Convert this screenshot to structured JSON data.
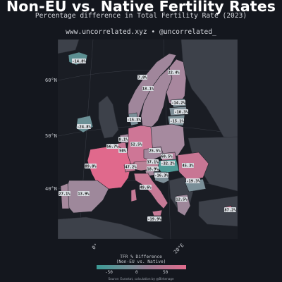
{
  "header": {
    "title": "Non-EU vs. Native Fertility Rates",
    "subtitle": "Percentage difference in Total Fertility Rate (2023)",
    "credit": "www.uncorrelated.xyz • @uncorrelated_"
  },
  "axes": {
    "lat_labels": [
      "60°N",
      "50°N",
      "40°N"
    ],
    "lon_labels": [
      "0°",
      "20°E"
    ]
  },
  "legend": {
    "title_line1": "TFR % Difference",
    "title_line2": "(Non-EU vs. Native)",
    "ticks": [
      "-50",
      "0",
      "50"
    ],
    "colors": {
      "negative": "#3b9a95",
      "neutral": "#8e8a97",
      "positive": "#e06b8c"
    }
  },
  "source": "Source: Eurostat, calculation by @Birkenage",
  "regions": [
    {
      "name": "Iceland",
      "label": "-14.8%"
    },
    {
      "name": "Norway",
      "label": "7.8%"
    },
    {
      "name": "Sweden",
      "label": "18.1%"
    },
    {
      "name": "Finland",
      "label": "22.4%"
    },
    {
      "name": "Estonia",
      "label": "-14.2%"
    },
    {
      "name": "Latvia",
      "label": "-10.3%"
    },
    {
      "name": "Lithuania",
      "label": "-15.1%"
    },
    {
      "name": "Denmark",
      "label": "-15.3%"
    },
    {
      "name": "Ireland",
      "label": "-24.8%"
    },
    {
      "name": "Netherlands",
      "label": "8.1%"
    },
    {
      "name": "Belgium",
      "label": "56.7%"
    },
    {
      "name": "Luxembourg",
      "label": "50%"
    },
    {
      "name": "Germany",
      "label": "52.5%"
    },
    {
      "name": "Poland",
      "label": "",
      "note": "no label"
    },
    {
      "name": "Czechia",
      "label": "25.5%"
    },
    {
      "name": "Slovakia",
      "label": "60.5%"
    },
    {
      "name": "Austria",
      "label": "37.1%"
    },
    {
      "name": "Hungary",
      "label": "-32.2%"
    },
    {
      "name": "Romania",
      "label": "45.3%"
    },
    {
      "name": "France",
      "label": "89.8%"
    },
    {
      "name": "Switzerland",
      "label": "47.2%"
    },
    {
      "name": "Slovenia",
      "label": "18.9%"
    },
    {
      "name": "Croatia",
      "label": "-16.3%"
    },
    {
      "name": "Bulgaria",
      "label": "-19.3%"
    },
    {
      "name": "Italy",
      "label": "49.6%"
    },
    {
      "name": "Greece",
      "label": "12.5%"
    },
    {
      "name": "Spain",
      "label": "13.9%"
    },
    {
      "name": "Portugal",
      "label": "27.1%"
    },
    {
      "name": "Malta",
      "label": "-19.9%"
    },
    {
      "name": "Cyprus",
      "label": "87.2%"
    }
  ]
}
